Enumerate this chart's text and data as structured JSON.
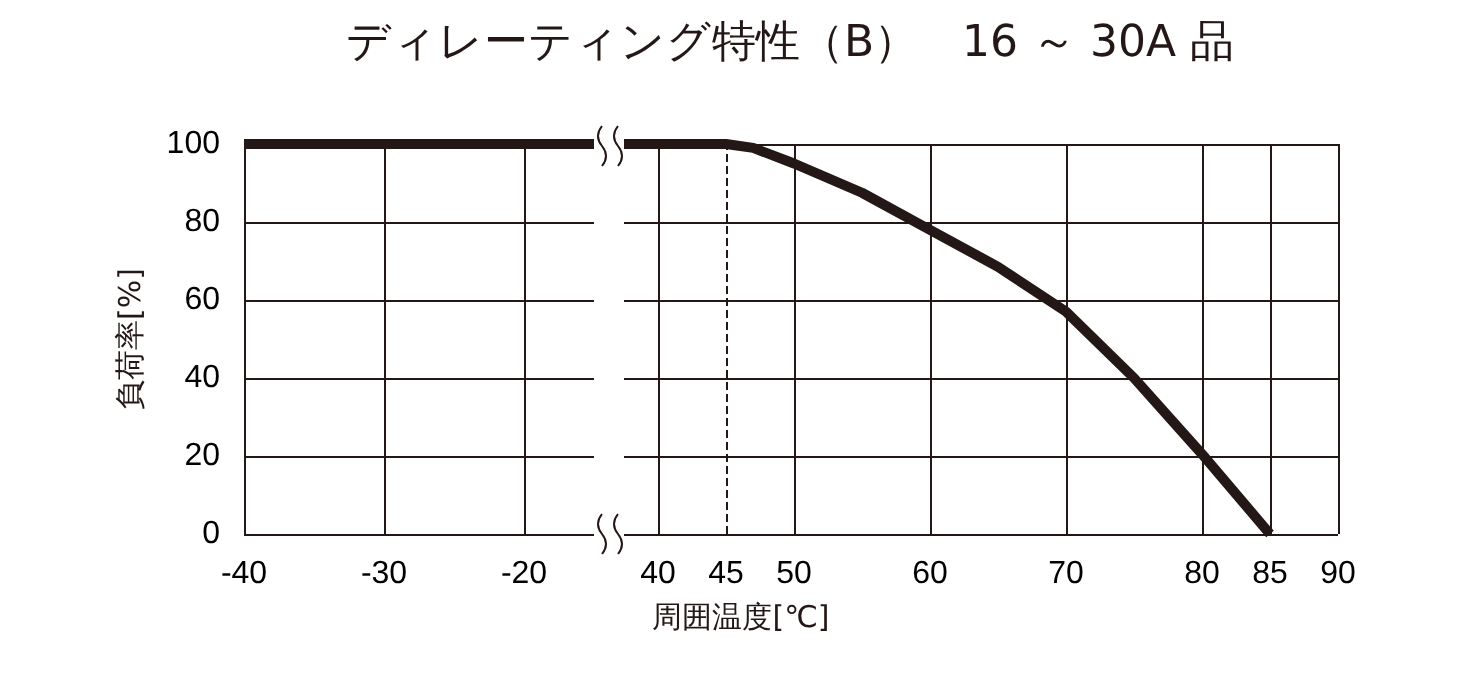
{
  "chart_data": [
    {
      "type": "line",
      "title": "ディレーティング特性（B）　16 ～ 30A 品",
      "ylabel": "負荷率[%]",
      "xlim": [
        -40,
        -15
      ],
      "xticks": [
        -40,
        -30,
        -20
      ],
      "ylim": [
        0,
        100
      ],
      "yticks": [
        0,
        20,
        40,
        60,
        80,
        100
      ],
      "grid": true,
      "marker": "none",
      "line_style": "solid",
      "series": [
        {
          "color": "#231815",
          "x": [
            -40,
            -15
          ],
          "values": [
            100,
            100
          ]
        }
      ]
    },
    {
      "type": "line",
      "xlabel": "周囲温度[℃]",
      "xlim": [
        37.5,
        90
      ],
      "xticks": [
        40,
        45,
        50,
        60,
        70,
        80,
        85,
        90
      ],
      "ylim": [
        0,
        100
      ],
      "yticks": [
        0,
        20,
        40,
        60,
        80,
        100
      ],
      "grid": true,
      "marker": "none",
      "line_style": "solid",
      "tick_labels": "x",
      "ref_lines": [
        {
          "axis": "x",
          "value": 45,
          "line_style": "dashed",
          "color": "#231815"
        }
      ],
      "series": [
        {
          "color": "#231815",
          "x": [
            37.5,
            45,
            47,
            50,
            55,
            60,
            65,
            70,
            75,
            80,
            85
          ],
          "values": [
            100,
            100,
            99,
            95,
            87.5,
            78,
            68.5,
            57,
            40,
            20.5,
            0
          ]
        }
      ]
    }
  ]
}
